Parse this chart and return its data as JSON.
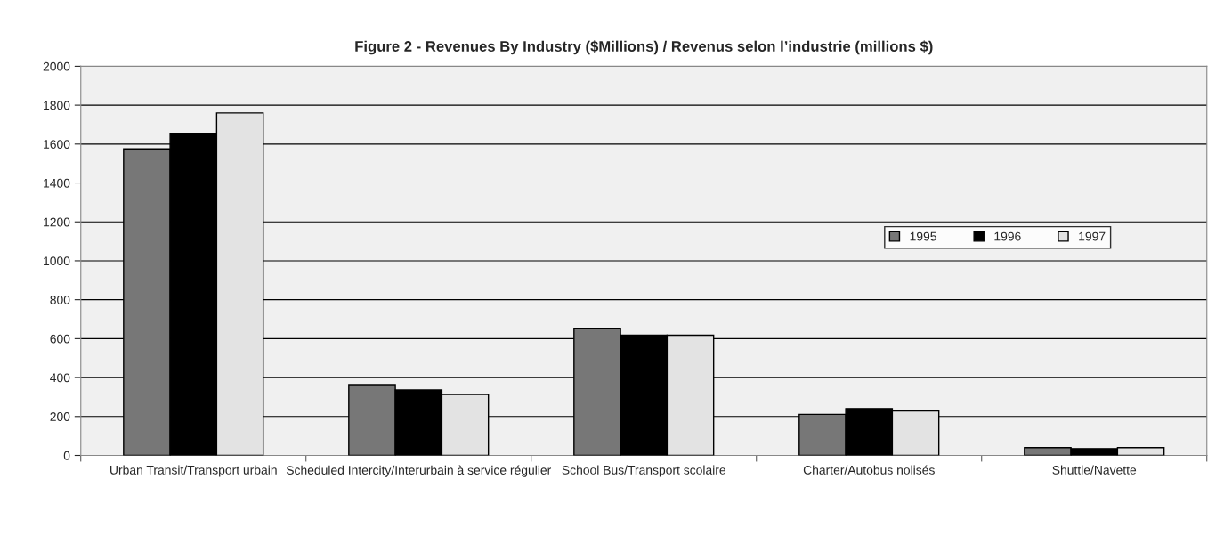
{
  "chart_data": {
    "type": "bar",
    "title": "Figure 2 - Revenues By Industry ($Millions) / Revenus selon l’industrie (millions $)",
    "categories": [
      "Urban Transit/Transport urbain",
      "Scheduled Intercity/Interurbain à service régulier",
      "School Bus/Transport scolaire",
      "Charter/Autobus nolisés",
      "Shuttle/Navette"
    ],
    "series": [
      {
        "name": "1995",
        "color": "#777777",
        "values": [
          1575,
          364,
          653,
          211,
          40
        ]
      },
      {
        "name": "1996",
        "color": "#000000",
        "values": [
          1655,
          336,
          618,
          241,
          35
        ]
      },
      {
        "name": "1997",
        "color": "#e3e3e3",
        "values": [
          1760,
          313,
          618,
          229,
          40
        ]
      }
    ],
    "ylim": [
      0,
      2000
    ],
    "yticks": [
      0,
      200,
      400,
      600,
      800,
      1000,
      1200,
      1400,
      1600,
      1800,
      2000
    ],
    "grid": "y",
    "legend": "right"
  }
}
